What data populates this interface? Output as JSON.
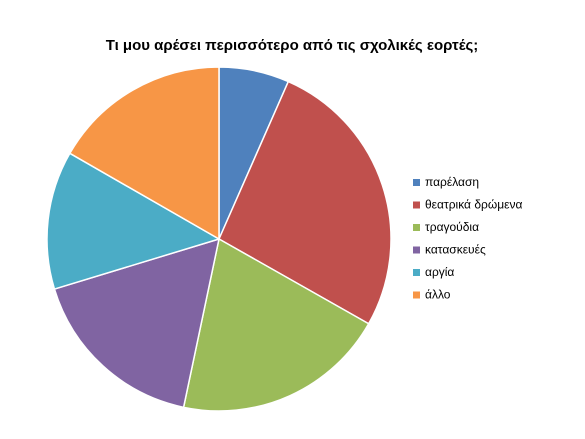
{
  "chart_data": {
    "type": "pie",
    "title": "Τι μου αρέσει περισσότερο από τις σχολικές εορτές;",
    "categories": [
      "παρέλαση",
      "θεατρικά δρώμενα",
      "τραγούδια",
      "κατασκευές",
      "αργία",
      "άλλο"
    ],
    "values": [
      6.6,
      26.6,
      20.1,
      17,
      13,
      16.7
    ],
    "colors": [
      "#4f81bd",
      "#c0504d",
      "#9bbb59",
      "#8064a2",
      "#4bacc6",
      "#f79646"
    ],
    "legend": "right"
  }
}
